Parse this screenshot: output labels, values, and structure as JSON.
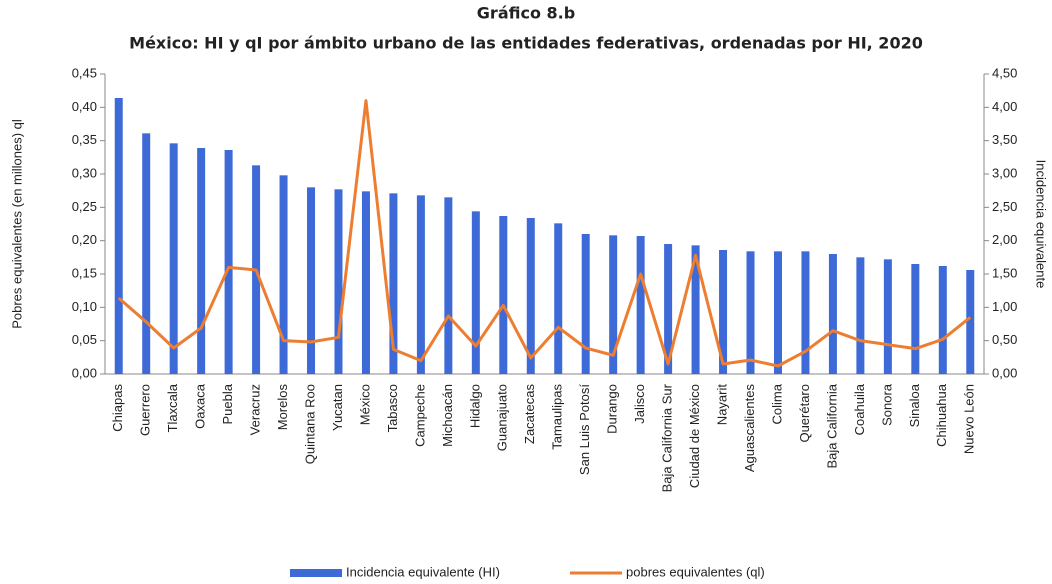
{
  "chart_data": {
    "type": "bar_line",
    "title": "Gráfico 8.b",
    "subtitle": "México: HI y qI por ámbito urbano de las entidades federativas, ordenadas por HI, 2020",
    "ylabel": "Pobres equivalentes (en millones) ql",
    "y2label": "Incidencia equivalente",
    "categories": [
      "Chiapas",
      "Guerrero",
      "Tlaxcala",
      "Oaxaca",
      "Puebla",
      "Veracruz",
      "Morelos",
      "Quintana Roo",
      "Yucatan",
      "México",
      "Tabasco",
      "Campeche",
      "Michoacán",
      "Hidalgo",
      "Guanajuato",
      "Zacatecas",
      "Tamaulipas",
      "San Luis Potosí",
      "Durango",
      "Jalisco",
      "Baja California Sur",
      "Ciudad de México",
      "Nayarit",
      "Aguascalientes",
      "Colima",
      "Querétaro",
      "Baja California",
      "Coahuila",
      "Sonora",
      "Sinaloa",
      "Chihuahua",
      "Nuevo León"
    ],
    "series": [
      {
        "name": "Incidencia equivalente (HI)",
        "type": "bar",
        "axis": "y2",
        "color": "#3d6ad6",
        "values": [
          4.14,
          3.61,
          3.46,
          3.39,
          3.36,
          3.13,
          2.98,
          2.8,
          2.77,
          2.74,
          2.71,
          2.68,
          2.65,
          2.44,
          2.37,
          2.34,
          2.26,
          2.1,
          2.08,
          2.07,
          1.95,
          1.93,
          1.86,
          1.84,
          1.84,
          1.84,
          1.8,
          1.75,
          1.72,
          1.65,
          1.62,
          1.56
        ]
      },
      {
        "name": "pobres equivalentes (ql)",
        "type": "line",
        "axis": "y",
        "color": "#ed7d31",
        "values": [
          0.114,
          0.078,
          0.039,
          0.069,
          0.16,
          0.156,
          0.05,
          0.048,
          0.055,
          0.41,
          0.037,
          0.02,
          0.087,
          0.042,
          0.103,
          0.024,
          0.07,
          0.039,
          0.028,
          0.15,
          0.015,
          0.178,
          0.015,
          0.021,
          0.012,
          0.034,
          0.065,
          0.05,
          0.044,
          0.038,
          0.052,
          0.085
        ]
      }
    ],
    "ylim": [
      0,
      0.45
    ],
    "yticks": [
      {
        "value": 0,
        "label": "0,00"
      },
      {
        "value": 0.05,
        "label": "0,05"
      },
      {
        "value": 0.1,
        "label": "0,10"
      },
      {
        "value": 0.15,
        "label": "0,15"
      },
      {
        "value": 0.2,
        "label": "0,20"
      },
      {
        "value": 0.25,
        "label": "0,25"
      },
      {
        "value": 0.3,
        "label": "0,30"
      },
      {
        "value": 0.35,
        "label": "0,35"
      },
      {
        "value": 0.4,
        "label": "0,40"
      },
      {
        "value": 0.45,
        "label": "0,45"
      }
    ],
    "y2lim": [
      0,
      4.5
    ],
    "y2ticks": [
      {
        "value": 0,
        "label": "0,00"
      },
      {
        "value": 0.5,
        "label": "0,50"
      },
      {
        "value": 1,
        "label": "1,00"
      },
      {
        "value": 1.5,
        "label": "1,50"
      },
      {
        "value": 2,
        "label": "2,00"
      },
      {
        "value": 2.5,
        "label": "2,50"
      },
      {
        "value": 3,
        "label": "3,00"
      },
      {
        "value": 3.5,
        "label": "3,50"
      },
      {
        "value": 4,
        "label": "4,00"
      },
      {
        "value": 4.5,
        "label": "4,50"
      }
    ],
    "legend": "bottom"
  }
}
